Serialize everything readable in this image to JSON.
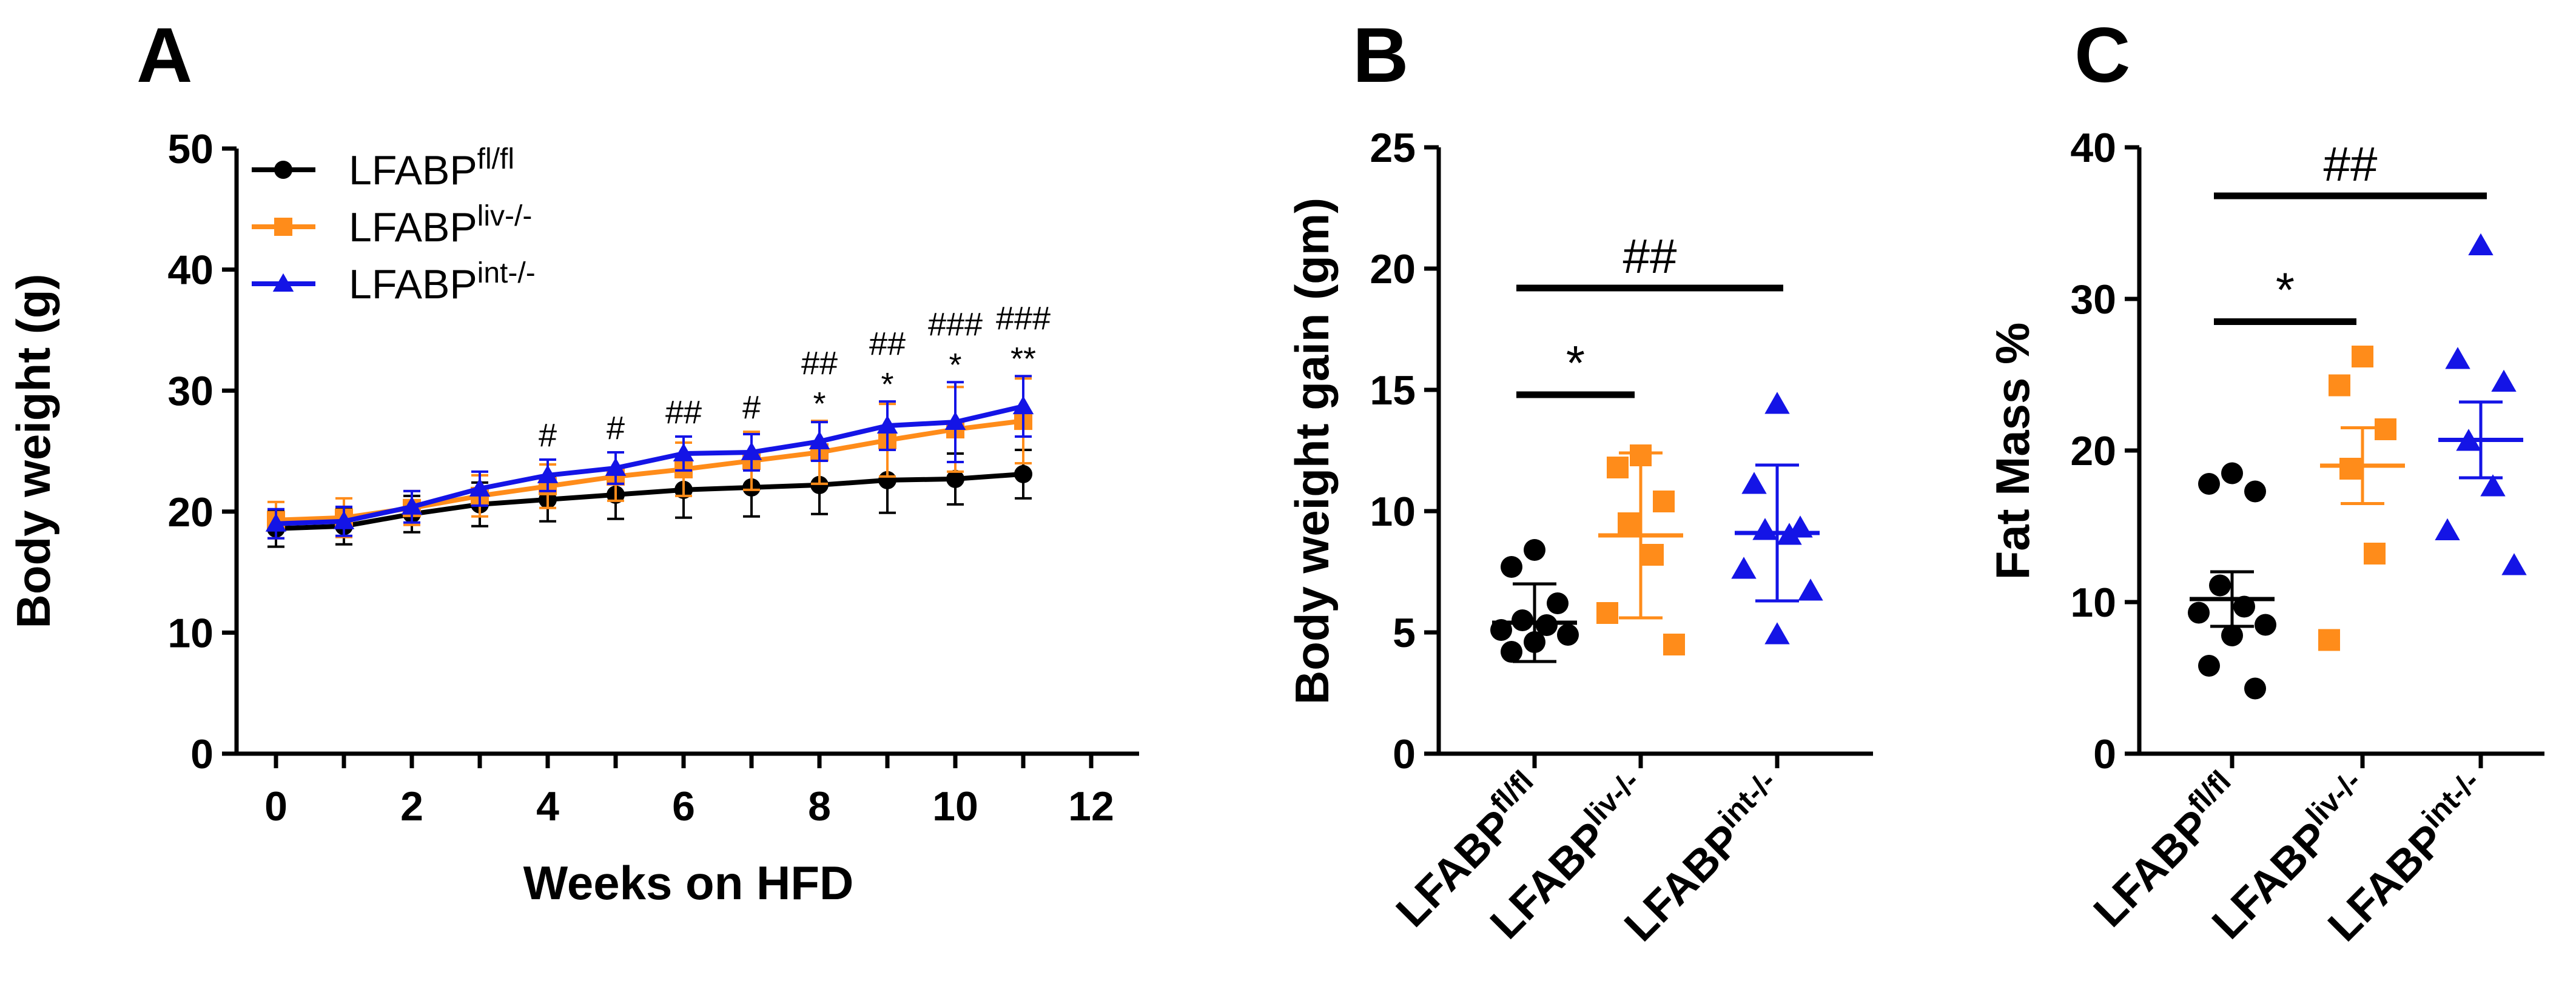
{
  "colors": {
    "fl": "#000000",
    "liv": "#ff8c1a",
    "int": "#1414e6"
  },
  "chart_data": [
    {
      "panel": "A",
      "type": "line",
      "title": "",
      "xlabel": "Weeks on HFD",
      "ylabel": "Body weight (g)",
      "xlim": [
        0,
        12
      ],
      "ylim": [
        0,
        50
      ],
      "xticks": [
        "0",
        "2",
        "4",
        "6",
        "8",
        "10",
        "12"
      ],
      "yticks": [
        "0",
        "10",
        "20",
        "30",
        "40",
        "50"
      ],
      "legend_position": "top-left",
      "x": [
        0,
        1,
        2,
        3,
        4,
        5,
        6,
        7,
        8,
        9,
        10,
        11
      ],
      "series": [
        {
          "name": "LFABP",
          "sup": "fl/fl",
          "color_key": "fl",
          "marker": "circle",
          "values": [
            18.6,
            18.8,
            19.8,
            20.6,
            21.0,
            21.4,
            21.8,
            22.0,
            22.2,
            22.6,
            22.7,
            23.1
          ],
          "errors": [
            1.5,
            1.5,
            1.5,
            1.8,
            1.8,
            2.0,
            2.3,
            2.4,
            2.4,
            2.7,
            2.1,
            2.0
          ]
        },
        {
          "name": "LFABP",
          "sup": "liv-/-",
          "color_key": "liv",
          "marker": "square",
          "values": [
            19.3,
            19.5,
            20.3,
            21.3,
            22.1,
            22.9,
            23.5,
            24.2,
            24.9,
            25.9,
            26.8,
            27.5
          ],
          "errors": [
            1.5,
            1.6,
            1.4,
            1.7,
            1.8,
            2.0,
            2.2,
            2.4,
            2.6,
            3.0,
            3.5,
            3.5
          ]
        },
        {
          "name": "LFABP",
          "sup": "int-/-",
          "color_key": "int",
          "marker": "triangle",
          "values": [
            19.0,
            19.2,
            20.4,
            21.9,
            23.0,
            23.6,
            24.8,
            24.9,
            25.8,
            27.1,
            27.4,
            28.7
          ],
          "errors": [
            1.2,
            1.2,
            1.3,
            1.4,
            1.3,
            1.3,
            1.4,
            1.5,
            1.6,
            2.0,
            3.3,
            2.5
          ]
        }
      ],
      "annotations": [
        {
          "x": 4,
          "hash": "#",
          "star": ""
        },
        {
          "x": 5,
          "hash": "#",
          "star": ""
        },
        {
          "x": 6,
          "hash": "##",
          "star": ""
        },
        {
          "x": 7,
          "hash": "#",
          "star": ""
        },
        {
          "x": 8,
          "hash": "##",
          "star": "*"
        },
        {
          "x": 9,
          "hash": "##",
          "star": "*"
        },
        {
          "x": 10,
          "hash": "###",
          "star": "*"
        },
        {
          "x": 11,
          "hash": "###",
          "star": "**"
        }
      ]
    },
    {
      "panel": "B",
      "type": "scatter",
      "ylabel": "Body weight gain (gm)",
      "ylim": [
        0,
        25
      ],
      "yticks": [
        "0",
        "5",
        "10",
        "15",
        "20",
        "25"
      ],
      "groups": [
        {
          "name": "LFABP",
          "sup": "fl/fl",
          "color_key": "fl",
          "marker": "circle",
          "mean": 5.4,
          "sem": 1.6,
          "values": [
            8.4,
            7.7,
            6.2,
            5.5,
            5.3,
            5.1,
            4.9,
            4.6,
            4.2
          ]
        },
        {
          "name": "LFABP",
          "sup": "liv-/-",
          "color_key": "liv",
          "marker": "square",
          "mean": 9.0,
          "sem": 3.4,
          "values": [
            12.3,
            11.8,
            10.4,
            9.5,
            8.2,
            5.8,
            4.5
          ]
        },
        {
          "name": "LFABP",
          "sup": "int-/-",
          "color_key": "int",
          "marker": "triangle",
          "mean": 9.1,
          "sem": 2.8,
          "values": [
            14.4,
            11.1,
            9.3,
            9.2,
            9.0,
            7.6,
            6.7,
            4.9
          ]
        }
      ],
      "significance": [
        {
          "from": 0,
          "to": 1,
          "label": "*",
          "y": 14.8
        },
        {
          "from": 0,
          "to": 2,
          "label": "##",
          "y": 19.2
        }
      ]
    },
    {
      "panel": "C",
      "type": "scatter",
      "ylabel": "Fat Mass %",
      "ylim": [
        0,
        40
      ],
      "yticks": [
        "0",
        "10",
        "20",
        "30",
        "40"
      ],
      "groups": [
        {
          "name": "LFABP",
          "sup": "fl/fl",
          "color_key": "fl",
          "marker": "circle",
          "mean": 10.2,
          "sem": 1.8,
          "values": [
            18.5,
            17.8,
            17.3,
            11.1,
            9.7,
            9.3,
            8.5,
            7.8,
            5.8,
            4.3
          ]
        },
        {
          "name": "LFABP",
          "sup": "liv-/-",
          "color_key": "liv",
          "marker": "square",
          "mean": 19.0,
          "sem": 2.5,
          "values": [
            26.2,
            24.3,
            21.4,
            18.8,
            13.2,
            7.5
          ]
        },
        {
          "name": "LFABP",
          "sup": "int-/-",
          "color_key": "int",
          "marker": "triangle",
          "mean": 20.7,
          "sem": 2.5,
          "values": [
            33.5,
            26.0,
            24.5,
            20.6,
            17.6,
            14.7,
            12.4
          ]
        }
      ],
      "significance": [
        {
          "from": 0,
          "to": 1,
          "label": "*",
          "y": 28.5
        },
        {
          "from": 0,
          "to": 2,
          "label": "##",
          "y": 36.8
        }
      ]
    }
  ]
}
